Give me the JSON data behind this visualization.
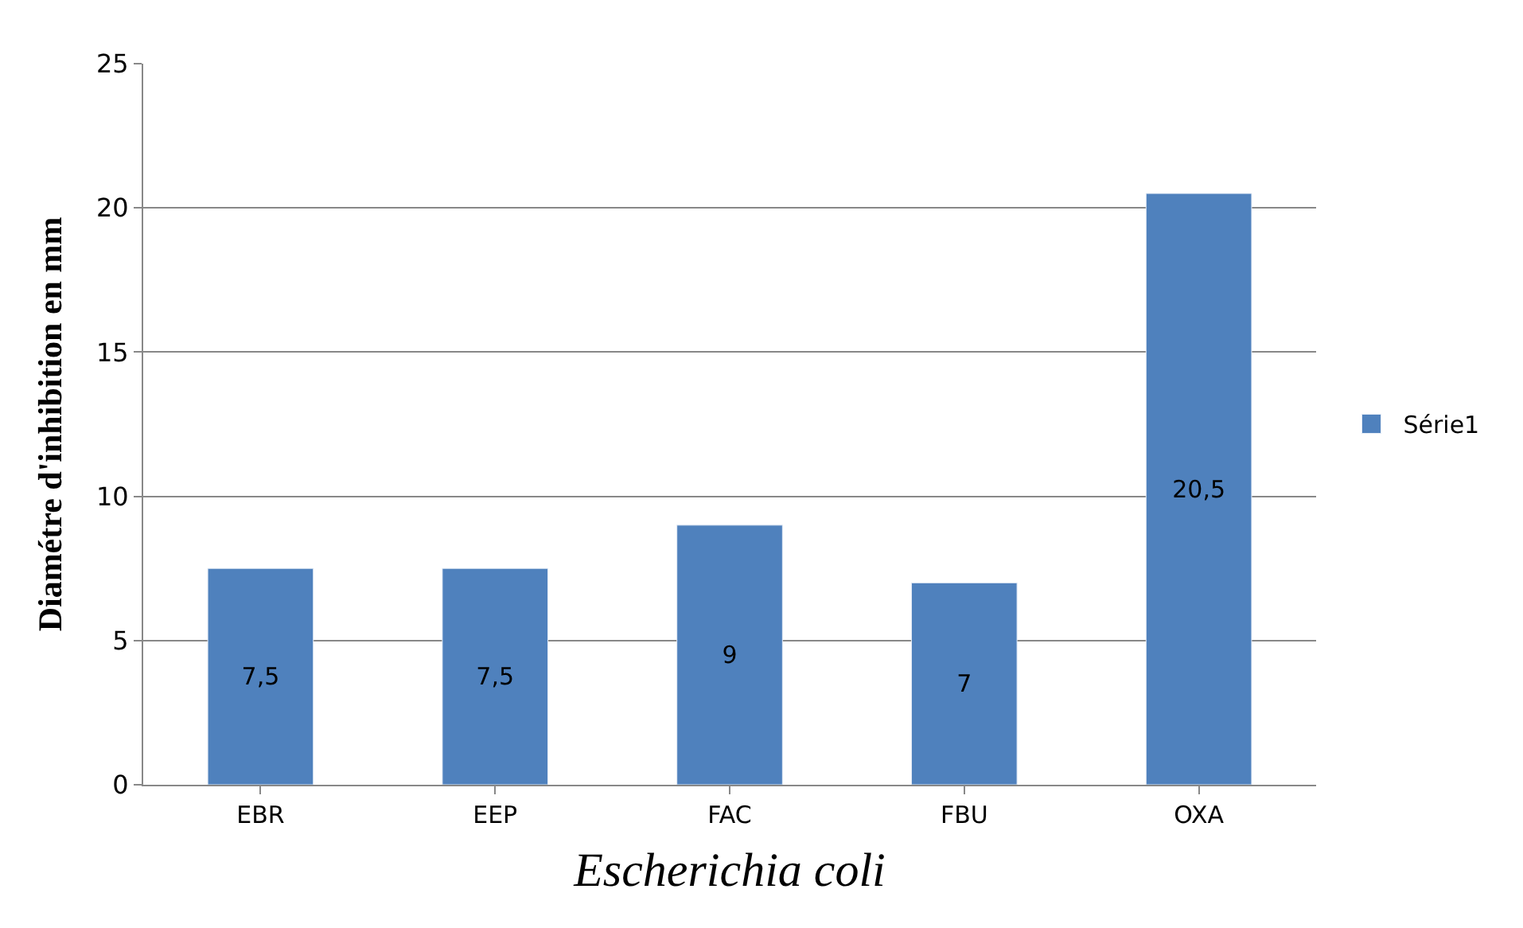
{
  "chart_data": {
    "type": "bar",
    "xlabel": "Escherichia coli",
    "ylabel": "Diamétre d'inhibition en mm",
    "categories": [
      "EBR",
      "EEP",
      "FAC",
      "FBU",
      "OXA"
    ],
    "series": [
      {
        "name": "Série1",
        "color": "#4f81bd",
        "values": [
          7.5,
          7.5,
          9,
          7,
          20.5
        ],
        "value_labels": [
          "7,5",
          "7,5",
          "9",
          "7",
          "20,5"
        ]
      }
    ],
    "ylim": [
      0,
      25
    ],
    "yticks": [
      0,
      5,
      10,
      15,
      20,
      25
    ],
    "grid": "y",
    "legend": "right"
  }
}
